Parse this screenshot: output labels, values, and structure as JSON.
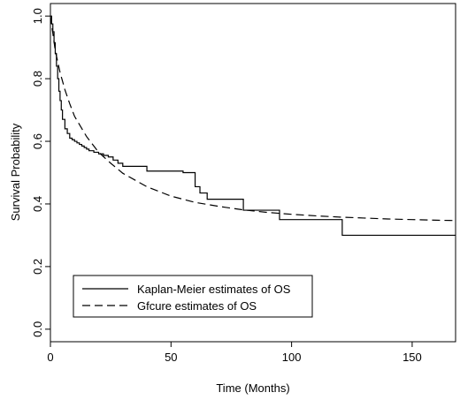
{
  "chart_data": {
    "type": "line",
    "title": "",
    "xlabel": "Time (Months)",
    "ylabel": "Survival Probability",
    "xlim": [
      0,
      168
    ],
    "ylim": [
      -0.04,
      1.04
    ],
    "x_ticks": [
      0,
      50,
      100,
      150
    ],
    "x_tick_labels": [
      "0",
      "50",
      "100",
      "150"
    ],
    "y_ticks": [
      0.0,
      0.2,
      0.4,
      0.6,
      0.8,
      1.0
    ],
    "y_tick_labels": [
      "0.0",
      "0.2",
      "0.4",
      "0.6",
      "0.8",
      "1.0"
    ],
    "grid": false,
    "legend_position": "bottom-left",
    "series": [
      {
        "name": "Kaplan-Meier estimates of OS",
        "line_style": "solid",
        "color": "#000000",
        "step": true,
        "x": [
          0,
          0.5,
          1,
          1.5,
          2,
          2.5,
          3,
          3.5,
          4,
          4.5,
          5,
          6,
          7,
          8,
          9,
          10,
          11,
          12,
          13,
          14,
          15,
          16,
          18,
          20,
          22,
          24,
          26,
          28,
          30,
          40,
          55,
          60,
          62,
          65,
          80,
          95,
          121,
          168
        ],
        "y": [
          1.0,
          0.975,
          0.95,
          0.915,
          0.88,
          0.84,
          0.8,
          0.76,
          0.73,
          0.7,
          0.67,
          0.64,
          0.625,
          0.61,
          0.605,
          0.6,
          0.595,
          0.59,
          0.585,
          0.58,
          0.575,
          0.57,
          0.565,
          0.56,
          0.555,
          0.55,
          0.54,
          0.53,
          0.52,
          0.505,
          0.5,
          0.455,
          0.435,
          0.415,
          0.38,
          0.35,
          0.3,
          0.3
        ]
      },
      {
        "name": "Gfcure estimates of OS",
        "line_style": "dashed",
        "color": "#000000",
        "step": false,
        "x": [
          0,
          2,
          4,
          6,
          8,
          10,
          15,
          20,
          25,
          30,
          40,
          50,
          60,
          70,
          80,
          90,
          100,
          110,
          120,
          130,
          140,
          150,
          160,
          168
        ],
        "y": [
          1.0,
          0.89,
          0.82,
          0.765,
          0.72,
          0.68,
          0.615,
          0.565,
          0.53,
          0.498,
          0.455,
          0.425,
          0.405,
          0.392,
          0.381,
          0.373,
          0.367,
          0.362,
          0.358,
          0.355,
          0.352,
          0.35,
          0.348,
          0.347
        ]
      }
    ]
  }
}
